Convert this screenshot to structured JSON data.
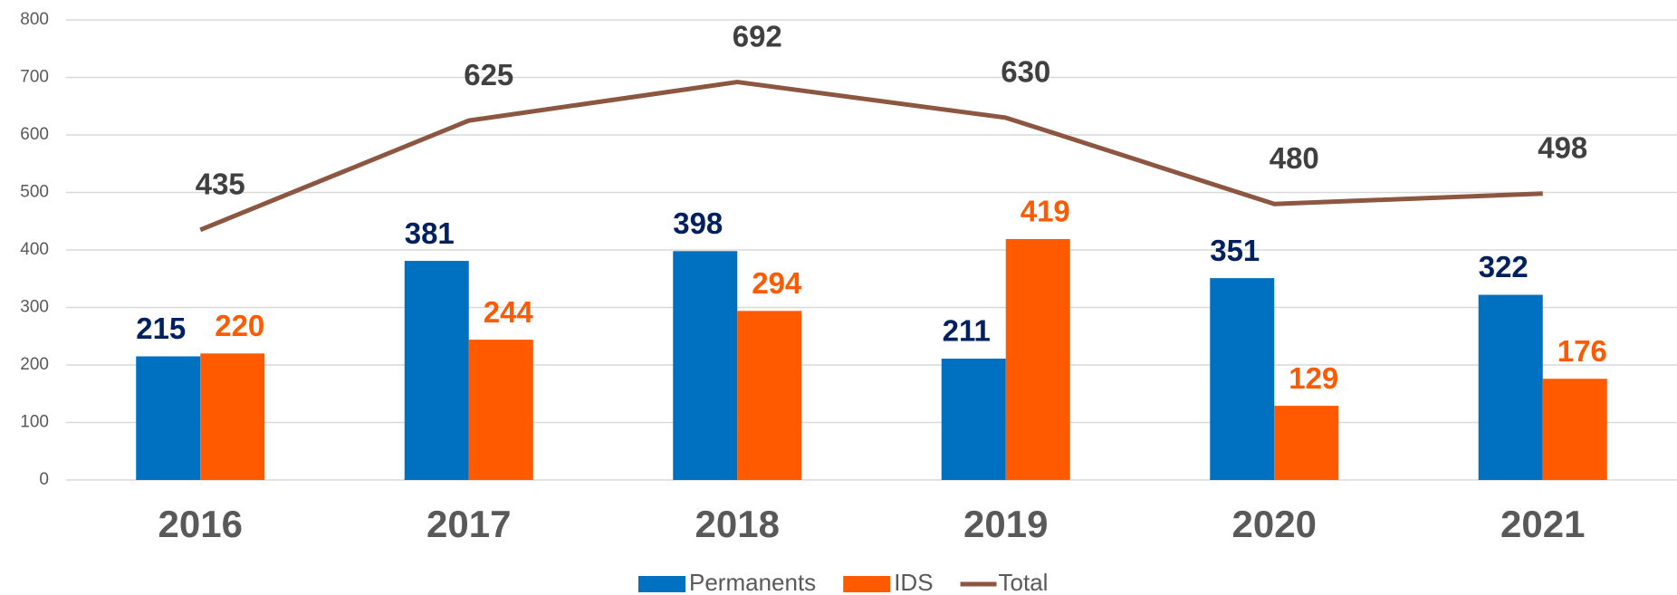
{
  "chart_data": {
    "type": "bar",
    "categories": [
      "2016",
      "2017",
      "2018",
      "2019",
      "2020",
      "2021"
    ],
    "series": [
      {
        "name": "Permanents",
        "color": "#0070c0",
        "label_color": "#002060",
        "values": [
          215,
          381,
          398,
          211,
          351,
          322
        ]
      },
      {
        "name": "IDS",
        "color": "#ff5a00",
        "label_color": "#ff5a00",
        "values": [
          220,
          244,
          294,
          419,
          129,
          176
        ]
      },
      {
        "name": "Total",
        "type": "line",
        "color": "#8c5640",
        "label_color": "#404040",
        "values": [
          435,
          625,
          692,
          630,
          480,
          498
        ]
      }
    ],
    "ylim": [
      0,
      800
    ],
    "yticks": [
      0,
      100,
      200,
      300,
      400,
      500,
      600,
      700,
      800
    ],
    "grid": true,
    "legend": "bottom"
  }
}
